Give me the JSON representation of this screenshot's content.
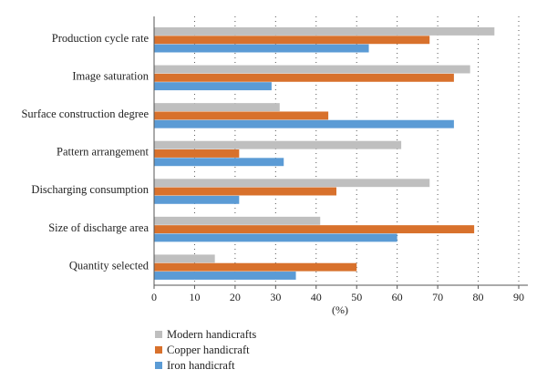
{
  "chart_data": {
    "type": "bar",
    "orientation": "horizontal",
    "categories": [
      "Production cycle rate",
      "Image saturation",
      "Surface construction degree",
      "Pattern arrangement",
      "Discharging consumption",
      "Size of discharge area",
      "Quantity selected"
    ],
    "series": [
      {
        "name": "Modern handicrafts",
        "color": "#bfbfbf",
        "values": [
          84,
          78,
          31,
          61,
          68,
          41,
          15
        ]
      },
      {
        "name": "Copper handicraft",
        "color": "#d8712c",
        "values": [
          68,
          74,
          43,
          21,
          45,
          79,
          50
        ]
      },
      {
        "name": "Iron handicraft",
        "color": "#5b9bd5",
        "values": [
          53,
          29,
          74,
          32,
          21,
          60,
          35
        ]
      }
    ],
    "xlabel": "(%)",
    "xlim": [
      0,
      90
    ],
    "xticks": [
      "0",
      "10",
      "20",
      "30",
      "40",
      "50",
      "60",
      "70",
      "80",
      "90"
    ],
    "grid": "vertical dotted",
    "legend_position": "bottom-left"
  }
}
